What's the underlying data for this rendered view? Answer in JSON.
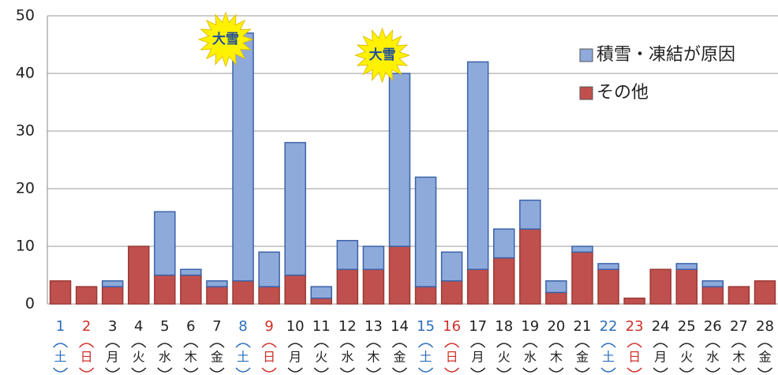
{
  "chart_data": {
    "type": "stacked_bar",
    "categories": [
      "1",
      "2",
      "3",
      "4",
      "5",
      "6",
      "7",
      "8",
      "9",
      "10",
      "11",
      "12",
      "13",
      "14",
      "15",
      "16",
      "17",
      "18",
      "19",
      "20",
      "21",
      "22",
      "23",
      "24",
      "25",
      "26",
      "27",
      "28"
    ],
    "weekdays": [
      "土",
      "日",
      "月",
      "火",
      "水",
      "木",
      "金",
      "土",
      "日",
      "月",
      "火",
      "水",
      "木",
      "金",
      "土",
      "日",
      "月",
      "火",
      "水",
      "木",
      "金",
      "土",
      "日",
      "月",
      "火",
      "水",
      "木",
      "金"
    ],
    "category_colors": [
      "#2a6ebb",
      "#d0302a",
      "#222",
      "#222",
      "#222",
      "#222",
      "#222",
      "#2a6ebb",
      "#d0302a",
      "#222",
      "#222",
      "#222",
      "#222",
      "#222",
      "#2a6ebb",
      "#d0302a",
      "#222",
      "#222",
      "#222",
      "#222",
      "#222",
      "#2a6ebb",
      "#d0302a",
      "#222",
      "#222",
      "#222",
      "#222",
      "#222"
    ],
    "series": [
      {
        "name": "その他",
        "color": "#c0504d",
        "values": [
          4,
          3,
          3,
          10,
          5,
          5,
          3,
          4,
          3,
          5,
          1,
          6,
          6,
          10,
          3,
          4,
          6,
          8,
          13,
          2,
          9,
          6,
          1,
          6,
          6,
          3,
          3,
          4
        ]
      },
      {
        "name": "積雪・凍結が原因",
        "color": "#8eaadb",
        "values": [
          0,
          0,
          1,
          0,
          11,
          1,
          1,
          43,
          6,
          23,
          2,
          5,
          4,
          30,
          19,
          5,
          36,
          5,
          5,
          2,
          1,
          1,
          0,
          0,
          1,
          1,
          0,
          0
        ]
      }
    ],
    "annotations": [
      {
        "text": "大雪",
        "category": "8"
      },
      {
        "text": "大雪",
        "category": "14"
      }
    ],
    "ylim": [
      0,
      50
    ],
    "yticks": [
      0,
      10,
      20,
      30,
      40,
      50
    ],
    "grid": true
  }
}
